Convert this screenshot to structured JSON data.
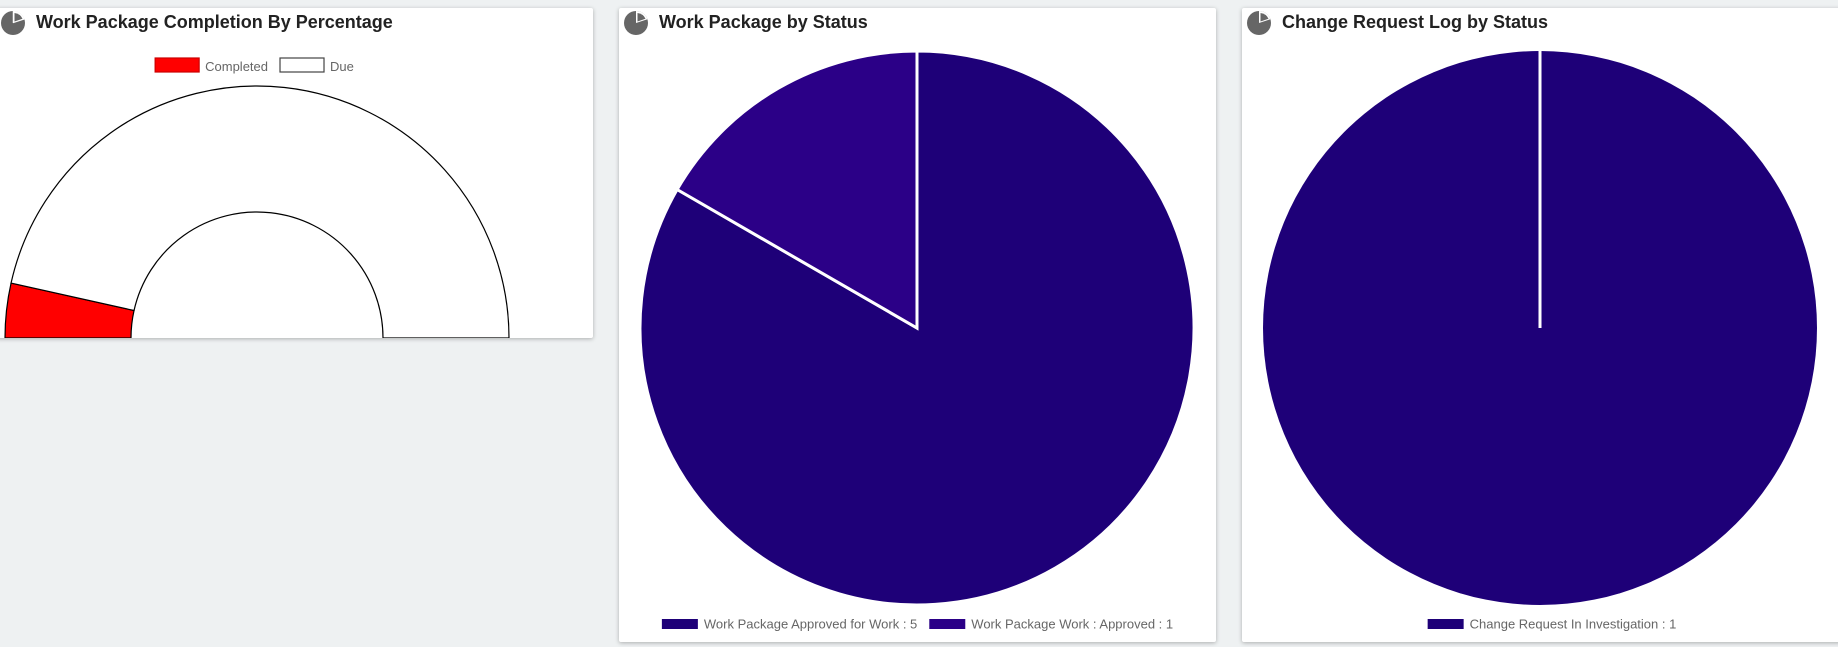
{
  "panels": {
    "gauge": {
      "title": "Work Package Completion By Percentage"
    },
    "work_package": {
      "title": "Work Package by Status"
    },
    "change_request": {
      "title": "Change Request Log by Status"
    }
  },
  "icons": {
    "panel_icon": "pie-chart-icon"
  },
  "colors": {
    "completed": "#ff0000",
    "due": "#ffffff",
    "wp_approved_for_work": "#1e0078",
    "wp_work_approved": "#2b0087",
    "cr_in_investigation": "#1e0078",
    "icon": "#666666",
    "background": "#eef1f2"
  },
  "chart_data": [
    {
      "type": "pie",
      "subtype": "half-doughnut gauge",
      "categories": [
        "Completed",
        "Due"
      ],
      "values": [
        7,
        93
      ],
      "legend_position": "top"
    },
    {
      "type": "pie",
      "categories": [
        "Work Package Approved for Work : 5",
        "Work Package Work : Approved : 1"
      ],
      "values": [
        5,
        1
      ],
      "legend_position": "bottom"
    },
    {
      "type": "pie",
      "categories": [
        "Change Request In Investigation : 1"
      ],
      "values": [
        1
      ],
      "legend_position": "bottom"
    }
  ]
}
